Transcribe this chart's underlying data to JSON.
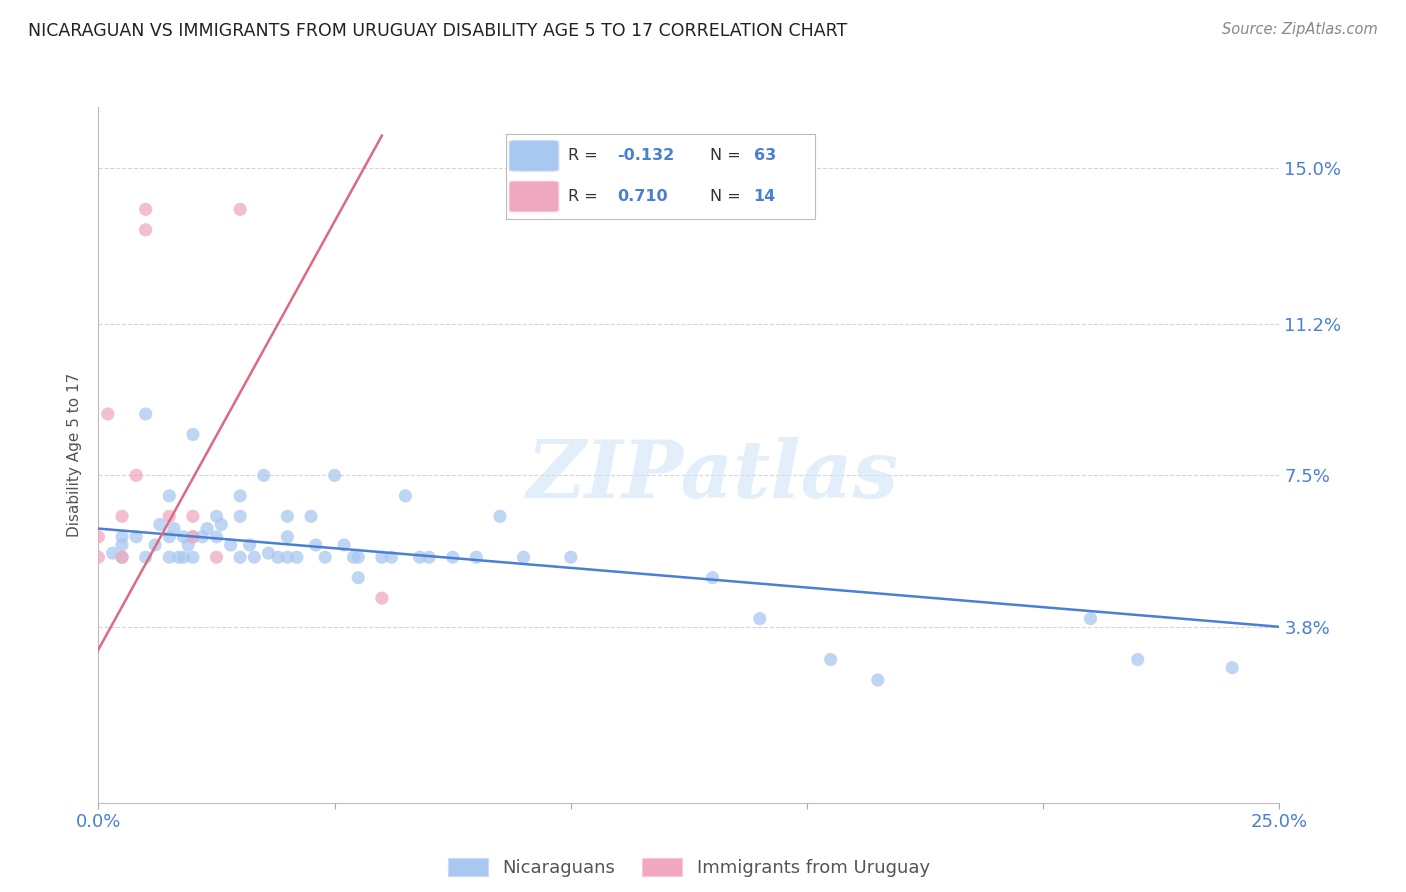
{
  "title": "NICARAGUAN VS IMMIGRANTS FROM URUGUAY DISABILITY AGE 5 TO 17 CORRELATION CHART",
  "source": "Source: ZipAtlas.com",
  "ylabel": "Disability Age 5 to 17",
  "xlim": [
    0.0,
    0.25
  ],
  "ylim": [
    -0.005,
    0.165
  ],
  "xticks": [
    0.0,
    0.05,
    0.1,
    0.15,
    0.2,
    0.25
  ],
  "xticklabels": [
    "0.0%",
    "",
    "",
    "",
    "",
    "25.0%"
  ],
  "ytick_positions": [
    0.038,
    0.075,
    0.112,
    0.15
  ],
  "ytick_labels": [
    "3.8%",
    "7.5%",
    "11.2%",
    "15.0%"
  ],
  "blue_color": "#a8c8f0",
  "pink_color": "#f0a8c0",
  "blue_line_color": "#4a7fd4",
  "pink_line_color": "#e06880",
  "watermark_text": "ZIPatlas",
  "R_blue": "-0.132",
  "N_blue": "63",
  "R_pink": "0.710",
  "N_pink": "14",
  "blue_scatter_x": [
    0.003,
    0.005,
    0.005,
    0.005,
    0.008,
    0.01,
    0.01,
    0.012,
    0.013,
    0.015,
    0.015,
    0.015,
    0.016,
    0.017,
    0.018,
    0.018,
    0.019,
    0.02,
    0.02,
    0.02,
    0.022,
    0.023,
    0.025,
    0.025,
    0.026,
    0.028,
    0.03,
    0.03,
    0.03,
    0.032,
    0.033,
    0.035,
    0.036,
    0.038,
    0.04,
    0.04,
    0.04,
    0.042,
    0.045,
    0.046,
    0.048,
    0.05,
    0.052,
    0.054,
    0.055,
    0.055,
    0.06,
    0.062,
    0.065,
    0.068,
    0.07,
    0.075,
    0.08,
    0.085,
    0.09,
    0.1,
    0.13,
    0.14,
    0.155,
    0.165,
    0.21,
    0.22,
    0.24
  ],
  "blue_scatter_y": [
    0.056,
    0.055,
    0.06,
    0.058,
    0.06,
    0.09,
    0.055,
    0.058,
    0.063,
    0.07,
    0.06,
    0.055,
    0.062,
    0.055,
    0.06,
    0.055,
    0.058,
    0.085,
    0.06,
    0.055,
    0.06,
    0.062,
    0.065,
    0.06,
    0.063,
    0.058,
    0.07,
    0.065,
    0.055,
    0.058,
    0.055,
    0.075,
    0.056,
    0.055,
    0.065,
    0.06,
    0.055,
    0.055,
    0.065,
    0.058,
    0.055,
    0.075,
    0.058,
    0.055,
    0.055,
    0.05,
    0.055,
    0.055,
    0.07,
    0.055,
    0.055,
    0.055,
    0.055,
    0.065,
    0.055,
    0.055,
    0.05,
    0.04,
    0.03,
    0.025,
    0.04,
    0.03,
    0.028
  ],
  "pink_scatter_x": [
    0.0,
    0.0,
    0.002,
    0.005,
    0.005,
    0.008,
    0.01,
    0.01,
    0.015,
    0.02,
    0.02,
    0.025,
    0.03,
    0.06
  ],
  "pink_scatter_y": [
    0.06,
    0.055,
    0.09,
    0.065,
    0.055,
    0.075,
    0.14,
    0.135,
    0.065,
    0.065,
    0.06,
    0.055,
    0.14,
    0.045
  ],
  "blue_trend_x": [
    0.0,
    0.25
  ],
  "blue_trend_y": [
    0.062,
    0.038
  ],
  "pink_trend_x": [
    -0.005,
    0.06
  ],
  "pink_trend_y": [
    0.022,
    0.158
  ],
  "background_color": "#ffffff",
  "grid_color": "#cccccc",
  "legend_blue_label": "Nicaraguans",
  "legend_pink_label": "Immigrants from Uruguay"
}
